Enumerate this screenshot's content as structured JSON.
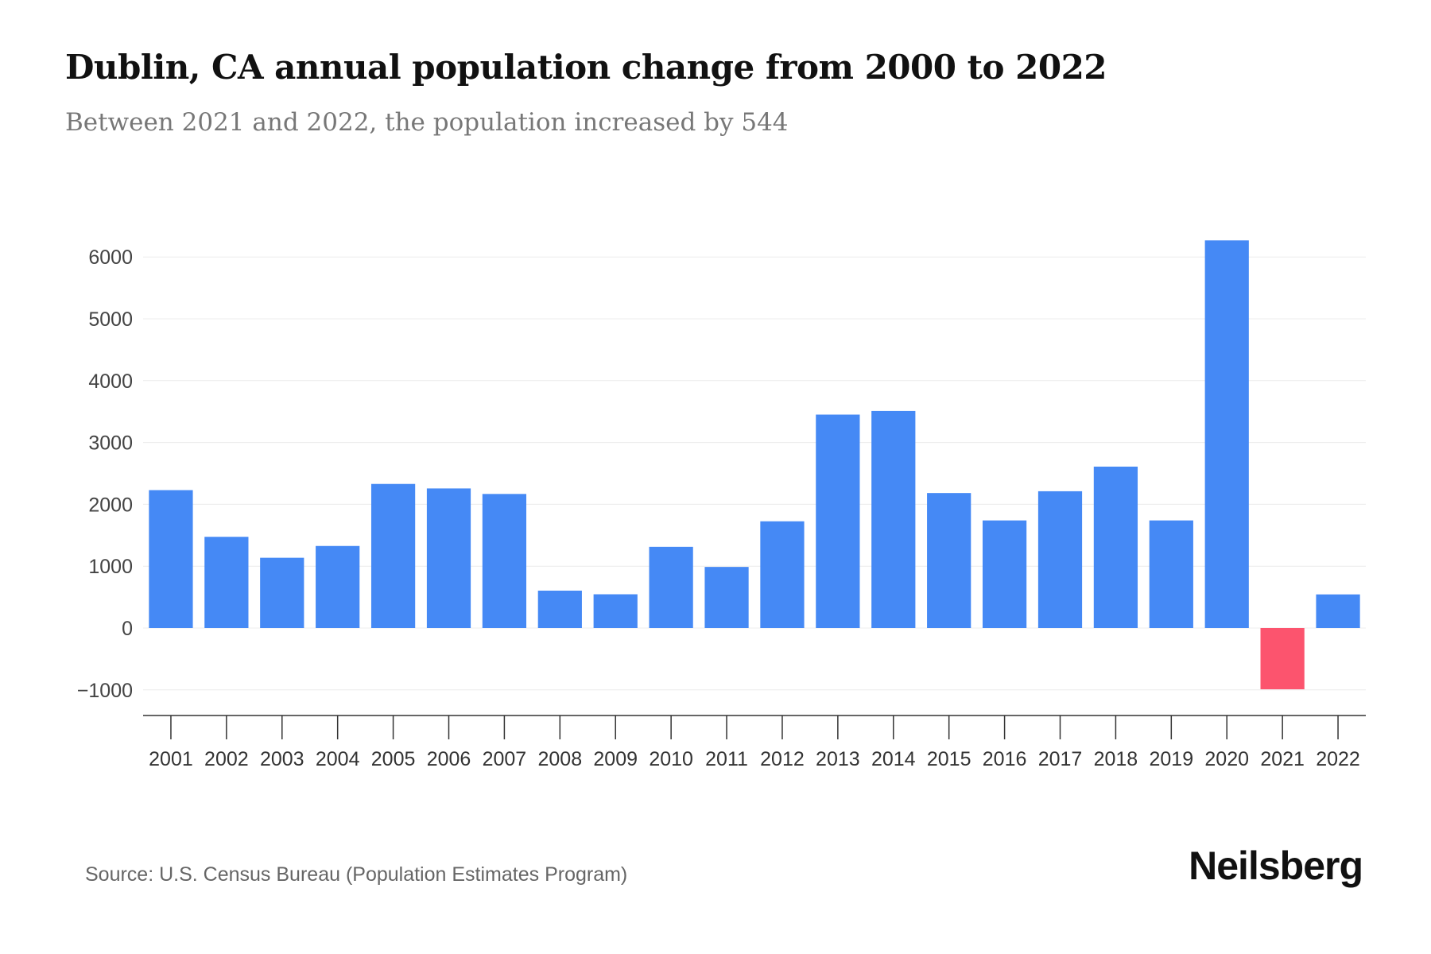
{
  "chart_data": {
    "type": "bar",
    "title": "Dublin, CA annual population change from 2000 to 2022",
    "subtitle": "Between 2021 and 2022, the population increased by 544",
    "xlabel": "",
    "ylabel": "",
    "ylim": [
      -1400,
      6400
    ],
    "yticks": [
      -1000,
      0,
      1000,
      2000,
      3000,
      4000,
      5000,
      6000
    ],
    "ytick_labels": [
      "−1000",
      "0",
      "1000",
      "2000",
      "3000",
      "4000",
      "5000",
      "6000"
    ],
    "grid": true,
    "categories": [
      "2001",
      "2002",
      "2003",
      "2004",
      "2005",
      "2006",
      "2007",
      "2008",
      "2009",
      "2010",
      "2011",
      "2012",
      "2013",
      "2014",
      "2015",
      "2016",
      "2017",
      "2018",
      "2019",
      "2020",
      "2021",
      "2022"
    ],
    "values": [
      2230,
      1475,
      1136,
      1327,
      2330,
      2257,
      2168,
      605,
      546,
      1313,
      988,
      1726,
      3451,
      3510,
      2183,
      1740,
      2212,
      2610,
      1740,
      6268,
      -990,
      544
    ],
    "colors": {
      "positive": "#4589f5",
      "negative": "#fc546e"
    }
  },
  "source": "Source: U.S. Census Bureau (Population Estimates Program)",
  "logo": "Neilsberg"
}
